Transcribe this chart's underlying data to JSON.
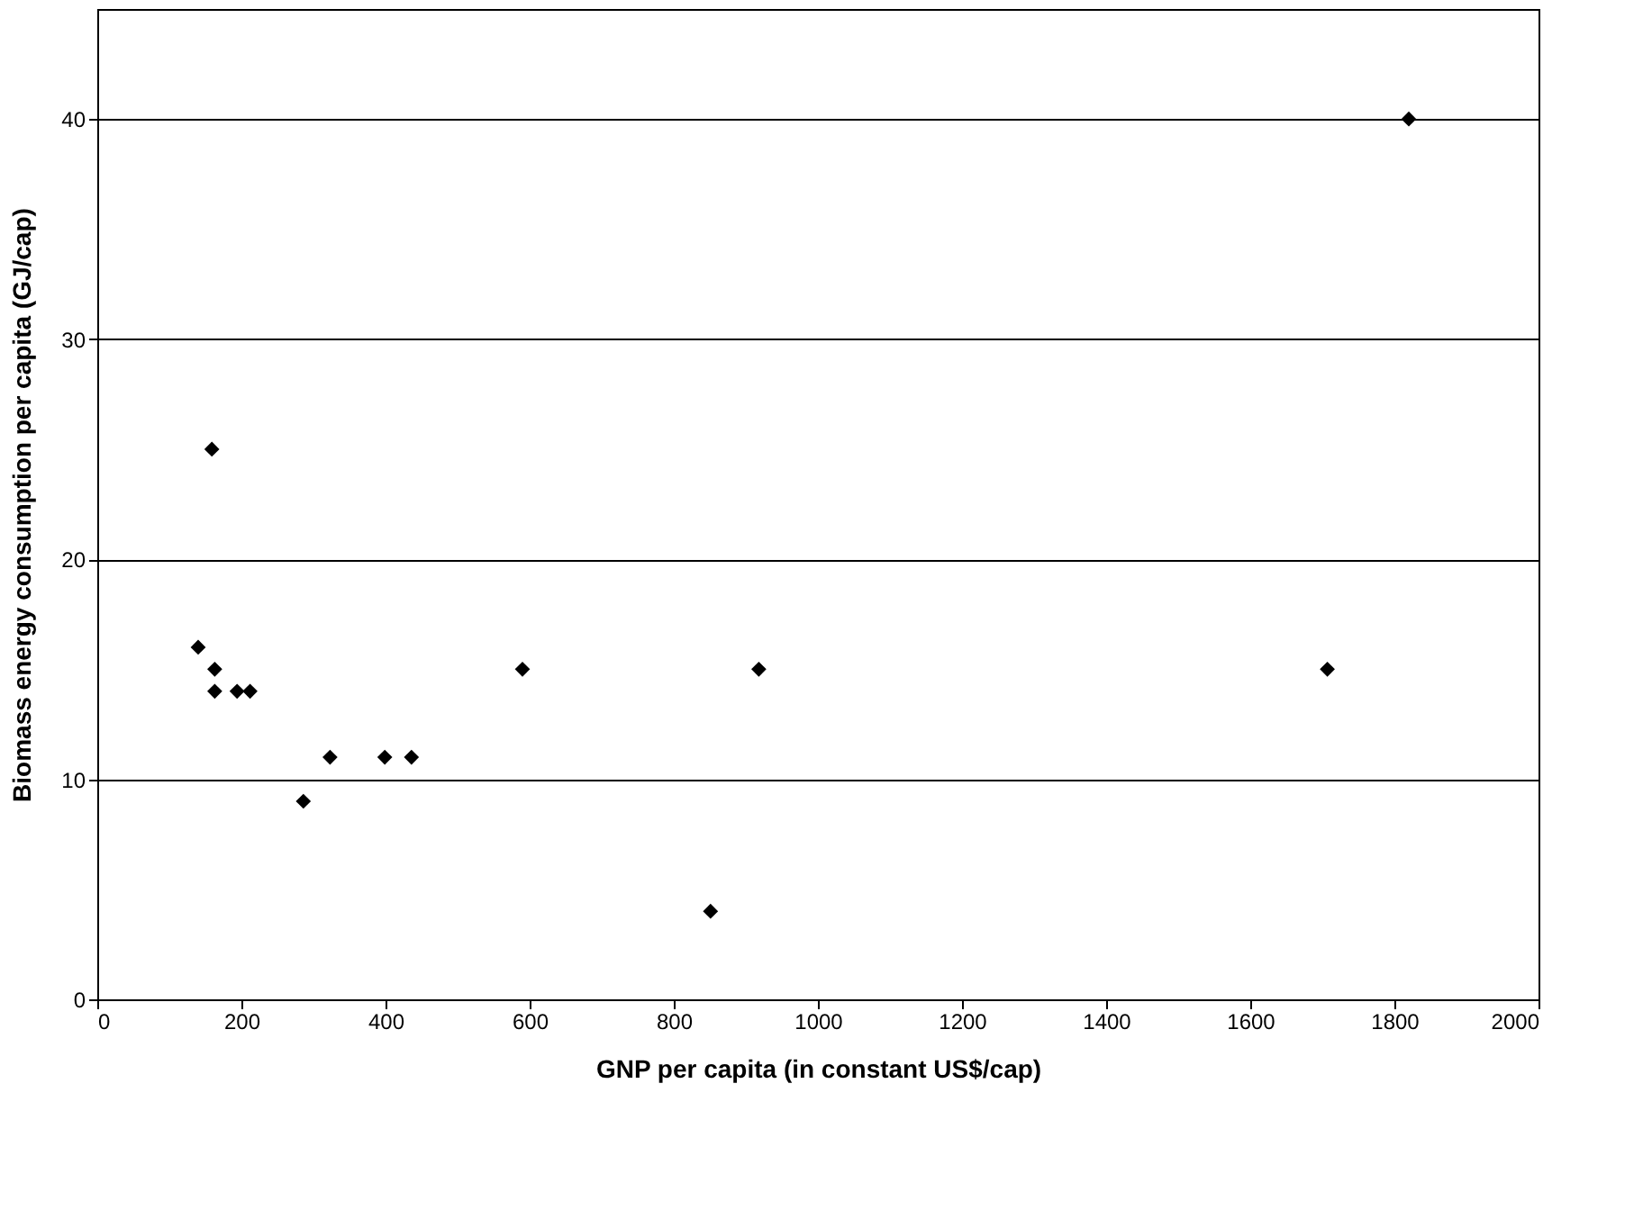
{
  "chart_data": {
    "type": "scatter",
    "xlabel": "GNP per capita (in constant US$/cap)",
    "ylabel": "Biomass energy consumption per capita (GJ/cap)",
    "x": [
      159,
      140,
      163,
      163,
      194,
      212,
      286,
      323,
      399,
      436,
      590,
      918,
      851,
      1707,
      1820
    ],
    "values": [
      25,
      16,
      15,
      14,
      14,
      14,
      9,
      11,
      11,
      11,
      15,
      15,
      4,
      15,
      40
    ],
    "color": "#000000",
    "marker": "diamond",
    "xlim": [
      0,
      2000
    ],
    "xticks": [
      0,
      200,
      400,
      600,
      800,
      1000,
      1200,
      1400,
      1600,
      1800,
      2000
    ],
    "ylim": [
      0,
      45
    ],
    "yticks": [
      0,
      10,
      20,
      30,
      40
    ],
    "grid": "y"
  }
}
